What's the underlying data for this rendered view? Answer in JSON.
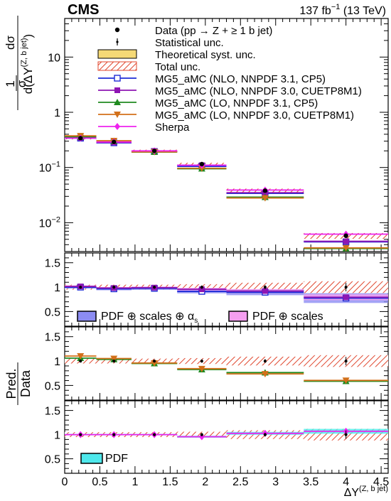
{
  "header": {
    "experiment": "CMS",
    "lumi_value": "137 fb",
    "lumi_exp": "−1",
    "lumi_energy": " (13 TeV)"
  },
  "axes": {
    "ylabel_prefix": "1",
    "ylabel_sigma": "σ",
    "ylabel_num": "dσ",
    "ylabel_den": "d(ΔY",
    "ylabel_den_sup": "(Z, b jet)",
    "ylabel_den_close": ")",
    "ratio_ylabel_top": "Pred.",
    "ratio_ylabel_bottom": "Data",
    "xlabel": "ΔY",
    "xlabel_sup": "(Z, b jet)",
    "main_yticks": [
      "10",
      "1",
      "10",
      "10"
    ],
    "main_yticks_exp": [
      "",
      "",
      "−1",
      "−2"
    ],
    "ratio_yticks": [
      "1.5",
      "1",
      "0.5"
    ],
    "xticks": [
      "0",
      "0.5",
      "1",
      "1.5",
      "2",
      "2.5",
      "3",
      "3.5",
      "4",
      "4.5"
    ]
  },
  "legend": {
    "data": "Data (pp → Z + ≥ 1 b jet)",
    "stat": "Statistical unc.",
    "theo": "Theoretical syst. unc.",
    "total": "Total unc.",
    "mg5_nlo_cp5": "MG5_aMC (NLO, NNPDF 3.1, CP5)",
    "mg5_nlo_cuetp": "MG5_aMC (NLO, NNPDF 3.0, CUETP8M1)",
    "mg5_lo_cp5": "MG5_aMC (LO, NNPDF 3.1, CP5)",
    "mg5_lo_cuetp": "MG5_aMC (LO, NNPDF 3.0, CUETP8M1)",
    "sherpa": "Sherpa"
  },
  "ratio_legends": {
    "panel1_a": "PDF ⊕ scales ⊕ α",
    "panel1_a_sub": "s",
    "panel1_b": "PDF ⊕ scales",
    "panel3_a": "PDF"
  },
  "colors": {
    "data": "#000000",
    "theo_fill": "#f5d976",
    "theo_border": "#000000",
    "total_hatch": "#e0472e",
    "mg5_nlo_cp5": "#1e2bd6",
    "mg5_nlo_cuetp": "#8e16b3",
    "mg5_lo_cp5": "#1f8a1f",
    "mg5_lo_cuetp": "#d2701a",
    "sherpa": "#ee22ee",
    "band_pdf_scales_as": "#8c8cf2",
    "band_pdf_scales": "#f59ef0",
    "band_pdf": "#4ee8ec"
  },
  "chart_data": {
    "type": "line",
    "x_bins": [
      [
        0,
        0.45
      ],
      [
        0.45,
        0.95
      ],
      [
        0.95,
        1.6
      ],
      [
        1.6,
        2.3
      ],
      [
        2.3,
        3.4
      ],
      [
        3.4,
        4.6
      ]
    ],
    "xlim": [
      0,
      4.6
    ],
    "main_ylim": [
      0.003,
      50
    ],
    "main_yscale": "log",
    "ratio_ylim": [
      0.2,
      1.7
    ],
    "data": {
      "values": [
        0.34,
        0.29,
        0.2,
        0.115,
        0.038,
        0.0058
      ],
      "stat_err": [
        0.01,
        0.009,
        0.006,
        0.004,
        0.0015,
        0.0005
      ],
      "total_rel": [
        0.05,
        0.05,
        0.05,
        0.06,
        0.09,
        0.12
      ]
    },
    "series": [
      {
        "name": "MG5_aMC (NLO, NNPDF 3.1, CP5)",
        "key": "mg5_nlo_cp5",
        "marker": "open-square",
        "panel": 1,
        "values": [
          0.34,
          0.28,
          0.195,
          0.105,
          0.034,
          0.0045
        ]
      },
      {
        "name": "MG5_aMC (NLO, NNPDF 3.0, CUETP8M1)",
        "key": "mg5_nlo_cuetp",
        "marker": "square",
        "panel": 1,
        "values": [
          0.345,
          0.285,
          0.198,
          0.11,
          0.035,
          0.0046
        ]
      },
      {
        "name": "MG5_aMC (LO, NNPDF 3.1, CP5)",
        "key": "mg5_lo_cp5",
        "marker": "triangle-up",
        "panel": 2,
        "values": [
          0.36,
          0.3,
          0.19,
          0.095,
          0.029,
          0.0034
        ]
      },
      {
        "name": "MG5_aMC (LO, NNPDF 3.0, CUETP8M1)",
        "key": "mg5_lo_cuetp",
        "marker": "triangle-down",
        "panel": 2,
        "values": [
          0.375,
          0.305,
          0.192,
          0.097,
          0.028,
          0.0035
        ]
      },
      {
        "name": "Sherpa",
        "key": "sherpa",
        "marker": "diamond",
        "panel": 3,
        "values": [
          0.34,
          0.29,
          0.2,
          0.11,
          0.039,
          0.0062
        ]
      }
    ],
    "ratio_bands": {
      "panel1": {
        "pdf_scales_as": [
          0.03,
          0.03,
          0.03,
          0.04,
          0.06,
          0.1
        ],
        "pdf_scales": [
          0.02,
          0.02,
          0.02,
          0.03,
          0.04,
          0.06
        ]
      },
      "panel3": {
        "pdf": [
          0.015,
          0.015,
          0.015,
          0.02,
          0.03,
          0.05
        ]
      }
    }
  }
}
